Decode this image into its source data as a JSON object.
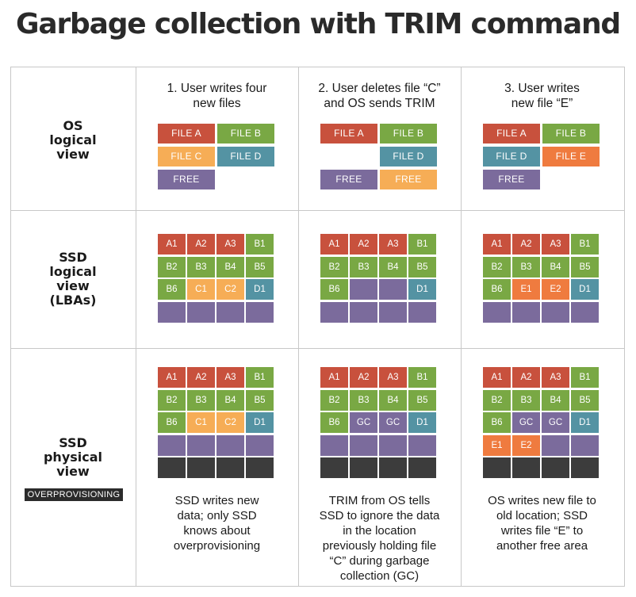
{
  "title": "Garbage collection with TRIM command",
  "colors": {
    "red": "#c8513d",
    "green": "#79a844",
    "orange_light": "#f6ad56",
    "orange": "#ef7b3f",
    "teal": "#5493a3",
    "purple": "#7b6b9c",
    "dark": "#3c3c3c"
  },
  "rows": [
    {
      "label": "OS\nlogical\nview"
    },
    {
      "label": "SSD\nlogical\nview\n(LBAs)"
    },
    {
      "label": "SSD\nphysical\nview"
    }
  ],
  "overprovisioning_badge": "OVERPROVISIONING",
  "columns": [
    {
      "heading": "1. User writes four\nnew files",
      "os_files": [
        {
          "label": "FILE A",
          "color": "red"
        },
        {
          "label": "FILE B",
          "color": "green"
        },
        {
          "label": "FILE C",
          "color": "orange_light"
        },
        {
          "label": "FILE D",
          "color": "teal"
        },
        {
          "label": "FREE",
          "color": "purple"
        },
        null
      ],
      "lba": [
        [
          {
            "t": "A1",
            "c": "red"
          },
          {
            "t": "A2",
            "c": "red"
          },
          {
            "t": "A3",
            "c": "red"
          },
          {
            "t": "B1",
            "c": "green"
          }
        ],
        [
          {
            "t": "B2",
            "c": "green"
          },
          {
            "t": "B3",
            "c": "green"
          },
          {
            "t": "B4",
            "c": "green"
          },
          {
            "t": "B5",
            "c": "green"
          }
        ],
        [
          {
            "t": "B6",
            "c": "green"
          },
          {
            "t": "C1",
            "c": "orange_light"
          },
          {
            "t": "C2",
            "c": "orange_light"
          },
          {
            "t": "D1",
            "c": "teal"
          }
        ],
        [
          {
            "t": "",
            "c": "purple"
          },
          {
            "t": "",
            "c": "purple"
          },
          {
            "t": "",
            "c": "purple"
          },
          {
            "t": "",
            "c": "purple"
          }
        ]
      ],
      "physical": [
        [
          {
            "t": "A1",
            "c": "red"
          },
          {
            "t": "A2",
            "c": "red"
          },
          {
            "t": "A3",
            "c": "red"
          },
          {
            "t": "B1",
            "c": "green"
          }
        ],
        [
          {
            "t": "B2",
            "c": "green"
          },
          {
            "t": "B3",
            "c": "green"
          },
          {
            "t": "B4",
            "c": "green"
          },
          {
            "t": "B5",
            "c": "green"
          }
        ],
        [
          {
            "t": "B6",
            "c": "green"
          },
          {
            "t": "C1",
            "c": "orange_light"
          },
          {
            "t": "C2",
            "c": "orange_light"
          },
          {
            "t": "D1",
            "c": "teal"
          }
        ],
        [
          {
            "t": "",
            "c": "purple"
          },
          {
            "t": "",
            "c": "purple"
          },
          {
            "t": "",
            "c": "purple"
          },
          {
            "t": "",
            "c": "purple"
          }
        ],
        [
          {
            "t": "",
            "c": "dark"
          },
          {
            "t": "",
            "c": "dark"
          },
          {
            "t": "",
            "c": "dark"
          },
          {
            "t": "",
            "c": "dark"
          }
        ]
      ],
      "caption": "SSD writes new\ndata; only SSD\nknows about\noverprovisioning"
    },
    {
      "heading": "2. User deletes file “C”\nand OS sends TRIM",
      "os_files": [
        {
          "label": "FILE A",
          "color": "red"
        },
        {
          "label": "FILE B",
          "color": "green"
        },
        null,
        {
          "label": "FILE D",
          "color": "teal"
        },
        {
          "label": "FREE",
          "color": "purple"
        },
        {
          "label": "FREE",
          "color": "orange_light"
        }
      ],
      "lba": [
        [
          {
            "t": "A1",
            "c": "red"
          },
          {
            "t": "A2",
            "c": "red"
          },
          {
            "t": "A3",
            "c": "red"
          },
          {
            "t": "B1",
            "c": "green"
          }
        ],
        [
          {
            "t": "B2",
            "c": "green"
          },
          {
            "t": "B3",
            "c": "green"
          },
          {
            "t": "B4",
            "c": "green"
          },
          {
            "t": "B5",
            "c": "green"
          }
        ],
        [
          {
            "t": "B6",
            "c": "green"
          },
          {
            "t": "",
            "c": "purple"
          },
          {
            "t": "",
            "c": "purple"
          },
          {
            "t": "D1",
            "c": "teal"
          }
        ],
        [
          {
            "t": "",
            "c": "purple"
          },
          {
            "t": "",
            "c": "purple"
          },
          {
            "t": "",
            "c": "purple"
          },
          {
            "t": "",
            "c": "purple"
          }
        ]
      ],
      "physical": [
        [
          {
            "t": "A1",
            "c": "red"
          },
          {
            "t": "A2",
            "c": "red"
          },
          {
            "t": "A3",
            "c": "red"
          },
          {
            "t": "B1",
            "c": "green"
          }
        ],
        [
          {
            "t": "B2",
            "c": "green"
          },
          {
            "t": "B3",
            "c": "green"
          },
          {
            "t": "B4",
            "c": "green"
          },
          {
            "t": "B5",
            "c": "green"
          }
        ],
        [
          {
            "t": "B6",
            "c": "green"
          },
          {
            "t": "GC",
            "c": "purple"
          },
          {
            "t": "GC",
            "c": "purple"
          },
          {
            "t": "D1",
            "c": "teal"
          }
        ],
        [
          {
            "t": "",
            "c": "purple"
          },
          {
            "t": "",
            "c": "purple"
          },
          {
            "t": "",
            "c": "purple"
          },
          {
            "t": "",
            "c": "purple"
          }
        ],
        [
          {
            "t": "",
            "c": "dark"
          },
          {
            "t": "",
            "c": "dark"
          },
          {
            "t": "",
            "c": "dark"
          },
          {
            "t": "",
            "c": "dark"
          }
        ]
      ],
      "caption": "TRIM from OS tells\nSSD to ignore the data\nin the location\npreviously holding file\n“C” during garbage\ncollection (GC)"
    },
    {
      "heading": "3. User writes\nnew file “E”",
      "os_files": [
        {
          "label": "FILE A",
          "color": "red"
        },
        {
          "label": "FILE B",
          "color": "green"
        },
        {
          "label": "FILE D",
          "color": "teal"
        },
        {
          "label": "FILE E",
          "color": "orange"
        },
        {
          "label": "FREE",
          "color": "purple"
        },
        null
      ],
      "lba": [
        [
          {
            "t": "A1",
            "c": "red"
          },
          {
            "t": "A2",
            "c": "red"
          },
          {
            "t": "A3",
            "c": "red"
          },
          {
            "t": "B1",
            "c": "green"
          }
        ],
        [
          {
            "t": "B2",
            "c": "green"
          },
          {
            "t": "B3",
            "c": "green"
          },
          {
            "t": "B4",
            "c": "green"
          },
          {
            "t": "B5",
            "c": "green"
          }
        ],
        [
          {
            "t": "B6",
            "c": "green"
          },
          {
            "t": "E1",
            "c": "orange"
          },
          {
            "t": "E2",
            "c": "orange"
          },
          {
            "t": "D1",
            "c": "teal"
          }
        ],
        [
          {
            "t": "",
            "c": "purple"
          },
          {
            "t": "",
            "c": "purple"
          },
          {
            "t": "",
            "c": "purple"
          },
          {
            "t": "",
            "c": "purple"
          }
        ]
      ],
      "physical": [
        [
          {
            "t": "A1",
            "c": "red"
          },
          {
            "t": "A2",
            "c": "red"
          },
          {
            "t": "A3",
            "c": "red"
          },
          {
            "t": "B1",
            "c": "green"
          }
        ],
        [
          {
            "t": "B2",
            "c": "green"
          },
          {
            "t": "B3",
            "c": "green"
          },
          {
            "t": "B4",
            "c": "green"
          },
          {
            "t": "B5",
            "c": "green"
          }
        ],
        [
          {
            "t": "B6",
            "c": "green"
          },
          {
            "t": "GC",
            "c": "purple"
          },
          {
            "t": "GC",
            "c": "purple"
          },
          {
            "t": "D1",
            "c": "teal"
          }
        ],
        [
          {
            "t": "E1",
            "c": "orange"
          },
          {
            "t": "E2",
            "c": "orange"
          },
          {
            "t": "",
            "c": "purple"
          },
          {
            "t": "",
            "c": "purple"
          }
        ],
        [
          {
            "t": "",
            "c": "dark"
          },
          {
            "t": "",
            "c": "dark"
          },
          {
            "t": "",
            "c": "dark"
          },
          {
            "t": "",
            "c": "dark"
          }
        ]
      ],
      "caption": "OS writes new file to\nold location; SSD\nwrites file “E” to\nanother free area"
    }
  ]
}
